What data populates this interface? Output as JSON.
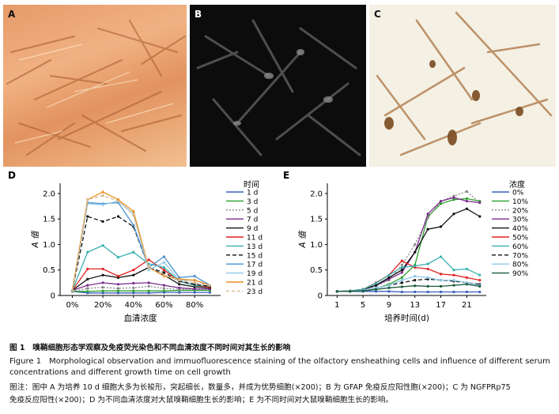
{
  "photos": {
    "a": {
      "label": "A"
    },
    "b": {
      "label": "B"
    },
    "c": {
      "label": "C"
    }
  },
  "chart_data": [
    {
      "type": "line",
      "panel_label": "D",
      "xlabel": "血清浓度",
      "ylabel": "A 值",
      "x": [
        0,
        10,
        20,
        30,
        40,
        50,
        60,
        70,
        80,
        90
      ],
      "x_tick_labels": [
        "0%",
        "20%",
        "40%",
        "60%",
        "80%"
      ],
      "x_tick_values": [
        0,
        20,
        40,
        60,
        80
      ],
      "xlim": [
        -8,
        97
      ],
      "ylim": [
        0,
        2.2
      ],
      "y_ticks": [
        0,
        0.5,
        1.0,
        1.5,
        2.0
      ],
      "y_tick_labels": [
        "0",
        "0.5",
        "1.0",
        "1.5",
        "2.0"
      ],
      "legend_title": "时间",
      "legend_position": "right",
      "series": [
        {
          "name": "1 d",
          "color": "#3b5fc0",
          "dash": "",
          "values": [
            0.08,
            0.05,
            0.05,
            0.05,
            0.05,
            0.05,
            0.06,
            0.06,
            0.06,
            0.06
          ]
        },
        {
          "name": "3 d",
          "color": "#2ca02c",
          "dash": "",
          "values": [
            0.08,
            0.08,
            0.09,
            0.09,
            0.09,
            0.09,
            0.09,
            0.1,
            0.1,
            0.1
          ]
        },
        {
          "name": "5 d",
          "color": "#888888",
          "dash": "2,2",
          "values": [
            0.08,
            0.14,
            0.16,
            0.14,
            0.15,
            0.18,
            0.14,
            0.12,
            0.12,
            0.12
          ]
        },
        {
          "name": "7 d",
          "color": "#7b2d8e",
          "dash": "",
          "values": [
            0.1,
            0.2,
            0.25,
            0.22,
            0.24,
            0.25,
            0.2,
            0.15,
            0.13,
            0.13
          ]
        },
        {
          "name": "9 d",
          "color": "#111111",
          "dash": "",
          "values": [
            0.1,
            0.32,
            0.4,
            0.35,
            0.4,
            0.55,
            0.4,
            0.22,
            0.17,
            0.15
          ]
        },
        {
          "name": "11 d",
          "color": "#e02020",
          "dash": "",
          "values": [
            0.1,
            0.52,
            0.52,
            0.38,
            0.5,
            0.7,
            0.5,
            0.28,
            0.2,
            0.16
          ]
        },
        {
          "name": "13 d",
          "color": "#3ab0b0",
          "dash": "",
          "values": [
            0.1,
            0.85,
            0.98,
            0.75,
            0.85,
            0.62,
            0.55,
            0.28,
            0.2,
            0.18
          ]
        },
        {
          "name": "15 d",
          "color": "#111111",
          "dash": "5,3",
          "values": [
            0.1,
            1.55,
            1.45,
            1.55,
            1.35,
            0.55,
            0.45,
            0.28,
            0.22,
            0.18
          ]
        },
        {
          "name": "17 d",
          "color": "#4a90d0",
          "dash": "",
          "values": [
            0.1,
            1.82,
            1.8,
            1.82,
            1.38,
            0.55,
            0.76,
            0.35,
            0.38,
            0.2
          ]
        },
        {
          "name": "19 d",
          "color": "#8fc8e8",
          "dash": "",
          "values": [
            0.1,
            1.8,
            1.78,
            1.85,
            1.6,
            0.5,
            0.65,
            0.3,
            0.3,
            0.2
          ]
        },
        {
          "name": "21 d",
          "color": "#e89020",
          "dash": "",
          "values": [
            0.1,
            1.88,
            2.03,
            1.88,
            1.65,
            0.55,
            0.38,
            0.32,
            0.3,
            0.2
          ]
        },
        {
          "name": "23 d",
          "color": "#d8b890",
          "dash": "4,3",
          "values": [
            0.1,
            1.88,
            1.96,
            1.85,
            1.58,
            0.55,
            0.4,
            0.3,
            0.25,
            0.2
          ]
        }
      ]
    },
    {
      "type": "line",
      "panel_label": "E",
      "xlabel": "培养时间(d)",
      "ylabel": "A 值",
      "x": [
        1,
        3,
        5,
        7,
        9,
        11,
        13,
        15,
        17,
        19,
        21,
        23
      ],
      "x_tick_labels": [
        "1",
        "5",
        "9",
        "13",
        "17",
        "21"
      ],
      "x_tick_values": [
        1,
        5,
        9,
        13,
        17,
        21
      ],
      "xlim": [
        -0.5,
        24
      ],
      "ylim": [
        0,
        2.2
      ],
      "y_ticks": [
        0,
        0.5,
        1.0,
        1.5,
        2.0
      ],
      "y_tick_labels": [
        "0",
        "0.5",
        "1.0",
        "1.5",
        "2.0"
      ],
      "legend_title": "浓度",
      "legend_position": "right",
      "series": [
        {
          "name": "0%",
          "color": "#3b5fc0",
          "dash": "",
          "values": [
            0.08,
            0.08,
            0.08,
            0.08,
            0.08,
            0.07,
            0.07,
            0.07,
            0.07,
            0.07,
            0.07,
            0.07
          ]
        },
        {
          "name": "10%",
          "color": "#2ca02c",
          "dash": "",
          "values": [
            0.08,
            0.08,
            0.1,
            0.14,
            0.22,
            0.35,
            0.6,
            1.55,
            1.8,
            1.88,
            1.9,
            1.85
          ]
        },
        {
          "name": "20%",
          "color": "#888888",
          "dash": "2,2",
          "values": [
            0.08,
            0.09,
            0.12,
            0.18,
            0.3,
            0.6,
            1.0,
            1.52,
            1.85,
            1.95,
            2.04,
            1.82
          ]
        },
        {
          "name": "30%",
          "color": "#7b2d8e",
          "dash": "",
          "values": [
            0.08,
            0.09,
            0.12,
            0.2,
            0.32,
            0.45,
            0.85,
            1.6,
            1.85,
            1.92,
            1.85,
            1.82
          ]
        },
        {
          "name": "40%",
          "color": "#111111",
          "dash": "",
          "values": [
            0.08,
            0.08,
            0.12,
            0.2,
            0.35,
            0.5,
            0.85,
            1.3,
            1.35,
            1.6,
            1.7,
            1.55
          ]
        },
        {
          "name": "50%",
          "color": "#e02020",
          "dash": "",
          "values": [
            0.08,
            0.09,
            0.12,
            0.25,
            0.4,
            0.68,
            0.55,
            0.52,
            0.42,
            0.4,
            0.35,
            0.3
          ]
        },
        {
          "name": "60%",
          "color": "#3ab0b0",
          "dash": "",
          "values": [
            0.08,
            0.09,
            0.12,
            0.24,
            0.4,
            0.55,
            0.58,
            0.62,
            0.76,
            0.5,
            0.52,
            0.4
          ]
        },
        {
          "name": "70%",
          "color": "#111111",
          "dash": "5,3",
          "values": [
            0.08,
            0.08,
            0.1,
            0.15,
            0.2,
            0.25,
            0.3,
            0.32,
            0.3,
            0.28,
            0.25,
            0.22
          ]
        },
        {
          "name": "80%",
          "color": "#8fc8e8",
          "dash": "",
          "values": [
            0.08,
            0.08,
            0.1,
            0.15,
            0.2,
            0.3,
            0.38,
            0.35,
            0.3,
            0.3,
            0.25,
            0.2
          ]
        },
        {
          "name": "90%",
          "color": "#1a5a3a",
          "dash": "",
          "values": [
            0.08,
            0.08,
            0.09,
            0.12,
            0.15,
            0.17,
            0.19,
            0.18,
            0.18,
            0.2,
            0.22,
            0.18
          ]
        }
      ]
    }
  ],
  "caption": {
    "cn": "图 1　嗅鞘细胞形态学观察及免疫荧光染色和不同血清浓度不同时间对其生长的影响",
    "en": "Figure 1　Morphological observation and immuofluorescence staining of the olfactory ensheathing cells and influence of different serum concentrations and different growth time on cell growth",
    "note": "图注：图中 A 为培养 10 d 细胞大多为长梭形，突起细长，数量多，并成为优势细胞(×200)；B 为 GFAP 免疫反应阳性胞(×200)；C 为 NGFPRp75",
    "note2": "免疫反应阳性(×200)；D 为不同血清浓度对大鼠嗅鞘细胞生长的影响；E 为不同时间对大鼠嗅鞘细胞生长的影响。"
  }
}
